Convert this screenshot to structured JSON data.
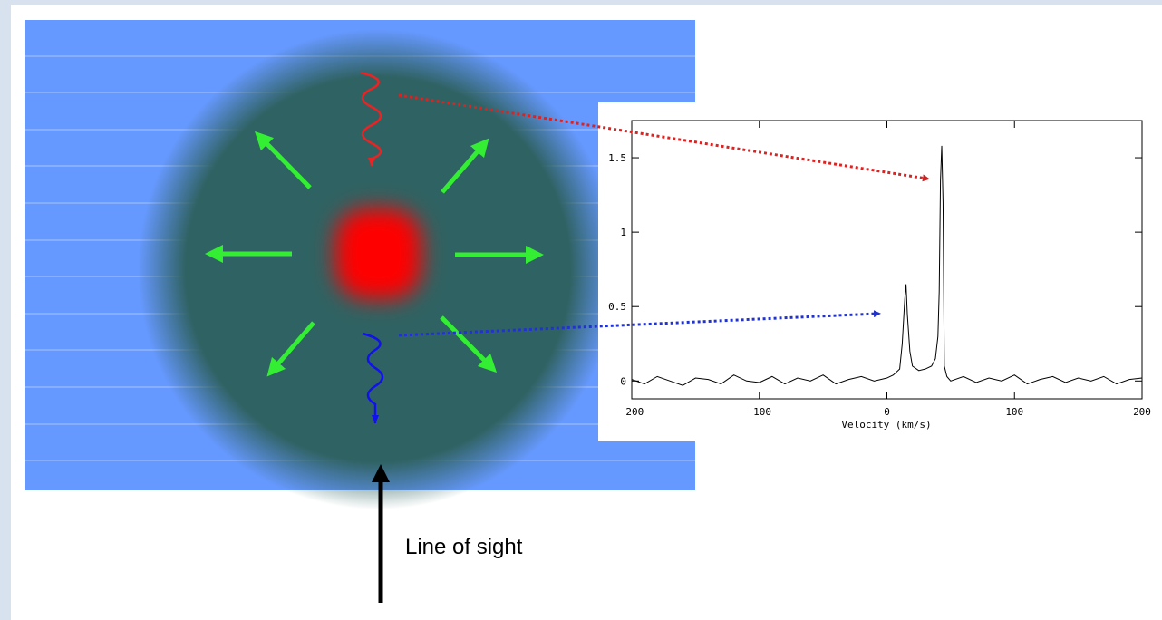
{
  "diagram": {
    "label": "Line of sight"
  },
  "chart_data": {
    "type": "line",
    "xlabel": "Velocity (km/s)",
    "x": [
      -200,
      -190,
      -180,
      -170,
      -160,
      -150,
      -140,
      -130,
      -120,
      -110,
      -100,
      -90,
      -80,
      -70,
      -60,
      -50,
      -40,
      -30,
      -20,
      -10,
      0,
      5,
      10,
      12,
      14,
      15,
      16,
      18,
      20,
      25,
      30,
      35,
      38,
      40,
      41,
      42,
      43,
      44,
      45,
      47,
      50,
      60,
      70,
      80,
      90,
      100,
      110,
      120,
      130,
      140,
      150,
      160,
      170,
      180,
      190,
      200
    ],
    "series": [
      {
        "color": "#000000",
        "values": [
          0.01,
          -0.02,
          0.03,
          0.0,
          -0.03,
          0.02,
          0.01,
          -0.02,
          0.04,
          0.0,
          -0.01,
          0.03,
          -0.02,
          0.02,
          0.0,
          0.04,
          -0.02,
          0.01,
          0.03,
          0.0,
          0.02,
          0.04,
          0.08,
          0.25,
          0.55,
          0.65,
          0.45,
          0.2,
          0.1,
          0.07,
          0.08,
          0.1,
          0.15,
          0.3,
          0.6,
          1.35,
          1.58,
          1.2,
          0.1,
          0.03,
          0.0,
          0.03,
          -0.01,
          0.02,
          0.0,
          0.04,
          -0.02,
          0.01,
          0.03,
          -0.01,
          0.02,
          0.0,
          0.03,
          -0.02,
          0.01,
          0.02
        ]
      }
    ],
    "xlim": [
      -200,
      200
    ],
    "ylim": [
      -0.12,
      1.75
    ],
    "xticks": [
      {
        "value": -200,
        "label": "−200"
      },
      {
        "value": -100,
        "label": "−100"
      },
      0,
      100,
      200
    ],
    "yticks": [
      0,
      0.5,
      1,
      1.5
    ]
  }
}
